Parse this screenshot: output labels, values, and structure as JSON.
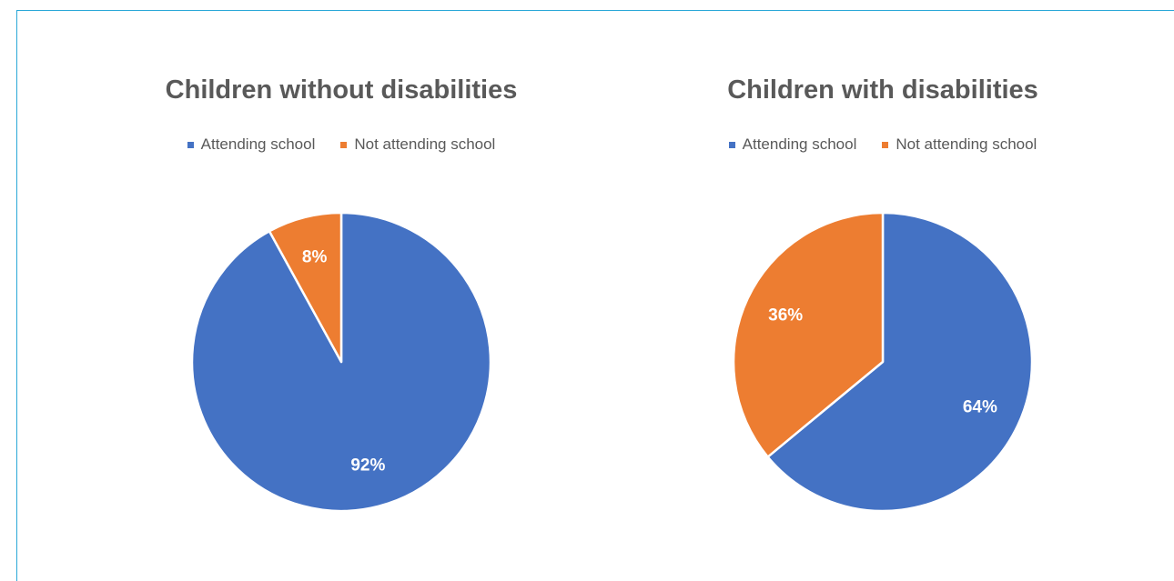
{
  "colors": {
    "attending": "#4472c4",
    "not_attending": "#ed7d31",
    "slice_border": "#ffffff",
    "frame": "#2aa8d8"
  },
  "chart_data": [
    {
      "type": "pie",
      "title": "Children without disabilities",
      "legend": {
        "placement": "top",
        "entries": [
          "Attending school",
          "Not attending school"
        ]
      },
      "slices": [
        {
          "label": "Attending school",
          "value": 92,
          "value_label": "92%"
        },
        {
          "label": "Not attending school",
          "value": 8,
          "value_label": "8%"
        }
      ]
    },
    {
      "type": "pie",
      "title": "Children with disabilities",
      "legend": {
        "placement": "top",
        "entries": [
          "Attending school",
          "Not attending school"
        ]
      },
      "slices": [
        {
          "label": "Attending school",
          "value": 64,
          "value_label": "64%"
        },
        {
          "label": "Not attending school",
          "value": 36,
          "value_label": "36%"
        }
      ]
    }
  ]
}
